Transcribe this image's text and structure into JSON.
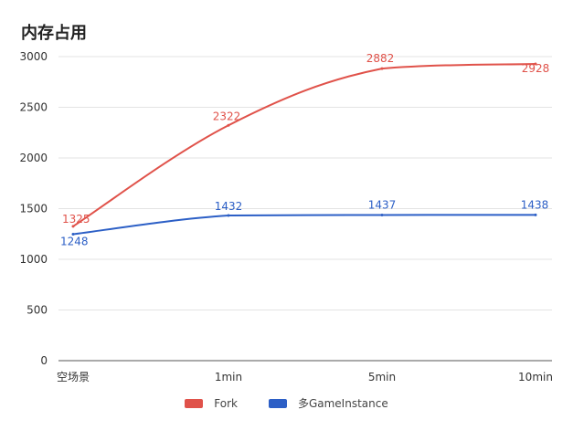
{
  "chart_data": {
    "type": "line",
    "title": "内存占用",
    "categories": [
      "空场景",
      "1min",
      "5min",
      "10min"
    ],
    "ylim": [
      0,
      3000
    ],
    "yticks": [
      0,
      500,
      1000,
      1500,
      2000,
      2500,
      3000
    ],
    "grid": true,
    "legend_position": "bottom-center",
    "series": [
      {
        "name": "Fork",
        "values": [
          1325,
          2322,
          2882,
          2928
        ],
        "color": "#e0524a"
      },
      {
        "name": "多GameInstance",
        "values": [
          1248,
          1432,
          1437,
          1438
        ],
        "color": "#2c5fc6"
      }
    ]
  }
}
